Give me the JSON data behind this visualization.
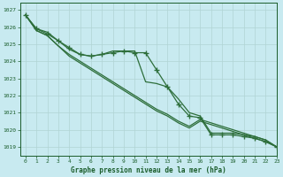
{
  "bg_color": "#c8eaf0",
  "grid_color": "#b0d4d4",
  "line_color": "#2d6e3a",
  "marker_color": "#2d6e3a",
  "xlabel": "Graphe pression niveau de la mer (hPa)",
  "xlabel_color": "#1a5c2a",
  "tick_color": "#1a5c2a",
  "xlim": [
    -0.5,
    23
  ],
  "ylim": [
    1018.5,
    1027.4
  ],
  "yticks": [
    1019,
    1020,
    1021,
    1022,
    1023,
    1024,
    1025,
    1026,
    1027
  ],
  "xticks": [
    0,
    1,
    2,
    3,
    4,
    5,
    6,
    7,
    8,
    9,
    10,
    11,
    12,
    13,
    14,
    15,
    16,
    17,
    18,
    19,
    20,
    21,
    22,
    23
  ],
  "series": [
    {
      "x": [
        0,
        1,
        2,
        3,
        4,
        5,
        6,
        7,
        8,
        9,
        10,
        11,
        12,
        13,
        14,
        15,
        16,
        17,
        18,
        19,
        20,
        21,
        22,
        23
      ],
      "y": [
        1026.7,
        1025.9,
        1025.7,
        1025.2,
        1024.7,
        1024.4,
        1024.3,
        1024.4,
        1024.6,
        1024.6,
        1024.6,
        1022.8,
        1022.7,
        1022.5,
        1021.8,
        1021.0,
        1020.8,
        1019.8,
        1019.8,
        1019.8,
        1019.7,
        1019.6,
        1019.4,
        1019.0
      ],
      "has_markers": false,
      "lw": 0.9
    },
    {
      "x": [
        0,
        1,
        2,
        3,
        4,
        5,
        6,
        7,
        8,
        9,
        10,
        11,
        12,
        13,
        14,
        15,
        16,
        17,
        18,
        19,
        20,
        21,
        22,
        23
      ],
      "y": [
        1026.7,
        1025.8,
        1025.5,
        1024.9,
        1024.4,
        1024.0,
        1023.6,
        1023.2,
        1022.8,
        1022.4,
        1022.0,
        1021.6,
        1021.2,
        1020.9,
        1020.5,
        1020.2,
        1020.6,
        1020.4,
        1020.2,
        1020.0,
        1019.8,
        1019.6,
        1019.4,
        1019.0
      ],
      "has_markers": false,
      "lw": 0.9
    },
    {
      "x": [
        0,
        1,
        2,
        3,
        4,
        5,
        6,
        7,
        8,
        9,
        10,
        11,
        12,
        13,
        14,
        15,
        16,
        17,
        18,
        19,
        20,
        21,
        22,
        23
      ],
      "y": [
        1026.7,
        1025.8,
        1025.5,
        1024.9,
        1024.3,
        1023.9,
        1023.5,
        1023.1,
        1022.7,
        1022.3,
        1021.9,
        1021.5,
        1021.1,
        1020.8,
        1020.4,
        1020.1,
        1020.5,
        1020.3,
        1020.1,
        1019.9,
        1019.7,
        1019.5,
        1019.3,
        1019.0
      ],
      "has_markers": false,
      "lw": 0.9
    },
    {
      "x": [
        0,
        1,
        2,
        3,
        4,
        5,
        6,
        7,
        8,
        9,
        10,
        11,
        12,
        13,
        14,
        15,
        16,
        17,
        18,
        19,
        20,
        21,
        22,
        23
      ],
      "y": [
        1026.7,
        1025.9,
        1025.6,
        1025.2,
        1024.8,
        1024.4,
        1024.3,
        1024.4,
        1024.5,
        1024.6,
        1024.5,
        1024.5,
        1023.5,
        1022.5,
        1021.5,
        1020.8,
        1020.7,
        1019.7,
        1019.7,
        1019.7,
        1019.6,
        1019.5,
        1019.3,
        1019.0
      ],
      "has_markers": true,
      "lw": 0.9
    }
  ]
}
